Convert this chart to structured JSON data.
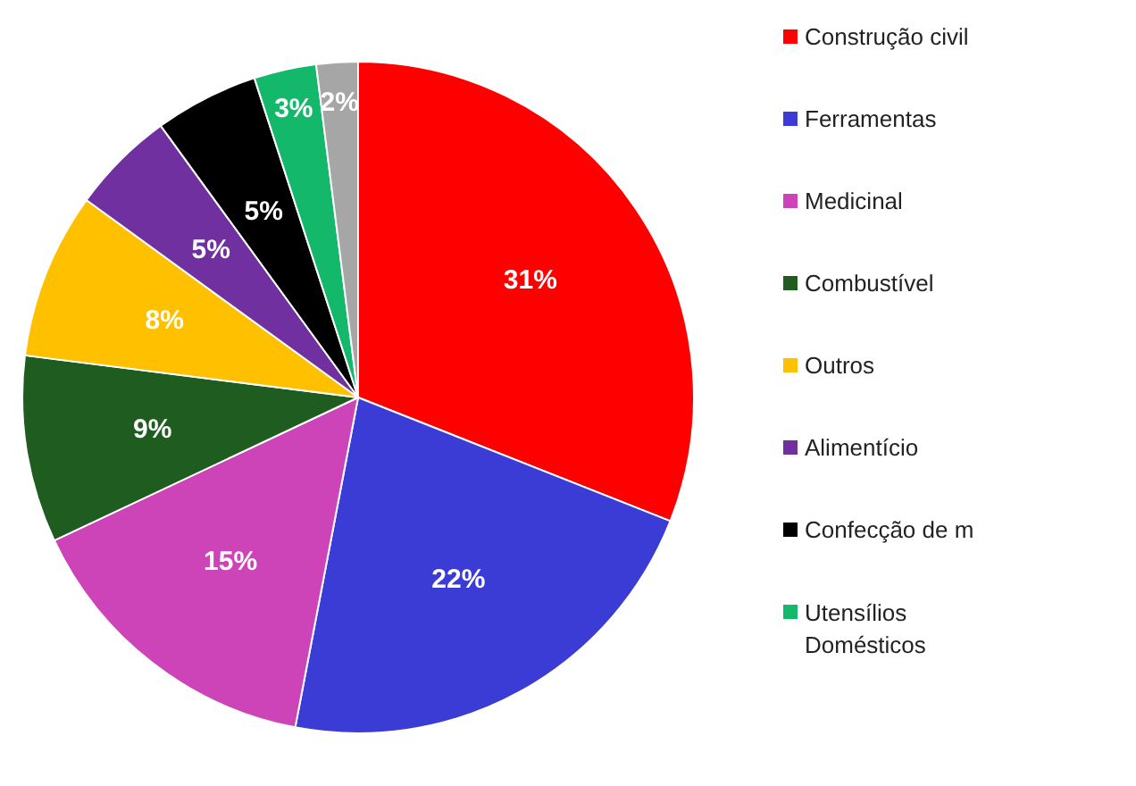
{
  "chart_data": {
    "type": "pie",
    "categories": [
      "Construção civil",
      "Ferramentas",
      "Medicinal",
      "Combustível",
      "Outros",
      "Alimentício",
      "Confecção de m",
      "Utensílios Domésticos",
      null
    ],
    "values": [
      31,
      22,
      15,
      9,
      8,
      5,
      5,
      3,
      2
    ],
    "colors": [
      "#ff0000",
      "#3b3bd6",
      "#cc44b8",
      "#1f5c1f",
      "#ffc000",
      "#7030a0",
      "#000000",
      "#14b86a",
      "#a6a6a6"
    ],
    "value_labels": [
      "31%",
      "22%",
      "15%",
      "9%",
      "8%",
      "5%",
      "5%",
      "3%",
      "2%"
    ],
    "legend": "right"
  }
}
